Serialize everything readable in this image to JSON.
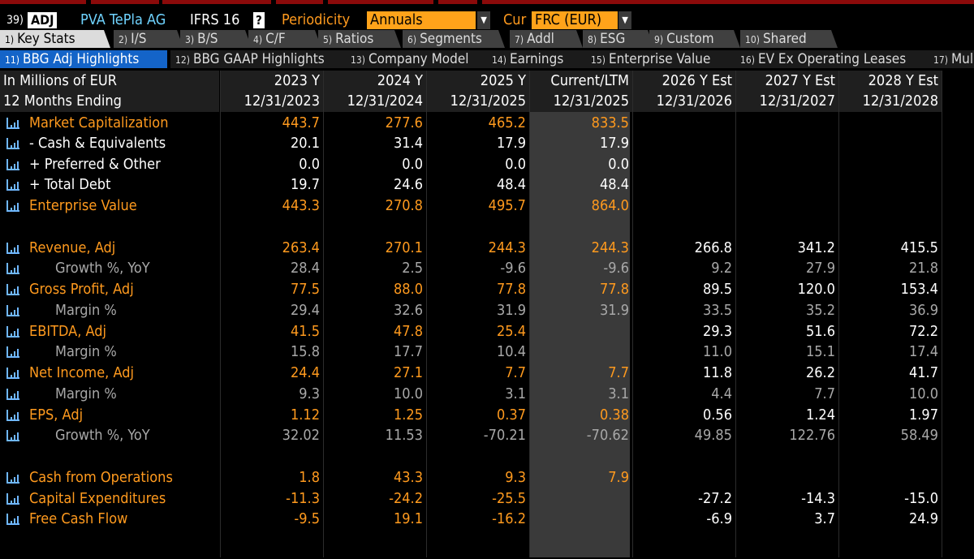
{
  "header": {
    "function_number": "39)",
    "function_code": "ADJ",
    "company": "PVA TePla AG",
    "standard": "IFRS 16",
    "help": "?",
    "periodicity_label": "Periodicity",
    "periodicity_value": "Annuals",
    "currency_label": "Cur",
    "currency_value": "FRC (EUR)"
  },
  "tabs_top": [
    {
      "num": "1)",
      "label": "Key Stats"
    },
    {
      "num": "2)",
      "label": "I/S"
    },
    {
      "num": "3)",
      "label": "B/S"
    },
    {
      "num": "4)",
      "label": "C/F"
    },
    {
      "num": "5)",
      "label": "Ratios"
    },
    {
      "num": "6)",
      "label": "Segments"
    },
    {
      "num": "7)",
      "label": "Addl"
    },
    {
      "num": "8)",
      "label": "ESG"
    },
    {
      "num": "9)",
      "label": "Custom"
    },
    {
      "num": "10)",
      "label": "Shared"
    }
  ],
  "tabs_sub": [
    {
      "num": "11)",
      "label": "BBG Adj Highlights"
    },
    {
      "num": "12)",
      "label": "BBG GAAP Highlights"
    },
    {
      "num": "13)",
      "label": "Company Model"
    },
    {
      "num": "14)",
      "label": "Earnings"
    },
    {
      "num": "15)",
      "label": "Enterprise Value"
    },
    {
      "num": "16)",
      "label": "EV Ex Operating Leases"
    },
    {
      "num": "17)",
      "label": "Mul"
    }
  ],
  "table": {
    "units_label": "In Millions of EUR",
    "period_label": "12 Months Ending",
    "columns": [
      {
        "year": "2023 Y",
        "date": "12/31/2023"
      },
      {
        "year": "2024 Y",
        "date": "12/31/2024"
      },
      {
        "year": "2025 Y",
        "date": "12/31/2025"
      },
      {
        "year": "Current/LTM",
        "date": "12/31/2025"
      },
      {
        "year": "2026 Y Est",
        "date": "12/31/2026"
      },
      {
        "year": "2027 Y Est",
        "date": "12/31/2027"
      },
      {
        "year": "2028 Y Est",
        "date": "12/31/2028"
      }
    ],
    "rows": [
      {
        "label": "Market Capitalization",
        "style": "main",
        "values": [
          "443.7",
          "277.6",
          "465.2",
          "833.5",
          "",
          "",
          ""
        ]
      },
      {
        "label": "- Cash & Equivalents",
        "style": "white",
        "values": [
          "20.1",
          "31.4",
          "17.9",
          "17.9",
          "",
          "",
          ""
        ]
      },
      {
        "label": "+ Preferred & Other",
        "style": "white",
        "values": [
          "0.0",
          "0.0",
          "0.0",
          "0.0",
          "",
          "",
          ""
        ]
      },
      {
        "label": "+ Total Debt",
        "style": "white",
        "values": [
          "19.7",
          "24.6",
          "48.4",
          "48.4",
          "",
          "",
          ""
        ]
      },
      {
        "label": "Enterprise Value",
        "style": "main",
        "values": [
          "443.3",
          "270.8",
          "495.7",
          "864.0",
          "",
          "",
          ""
        ]
      },
      {
        "label": "",
        "style": "blank",
        "values": [
          "",
          "",
          "",
          "",
          "",
          "",
          ""
        ]
      },
      {
        "label": "Revenue, Adj",
        "style": "main",
        "values": [
          "263.4",
          "270.1",
          "244.3",
          "244.3",
          "266.8",
          "341.2",
          "415.5"
        ]
      },
      {
        "label": "Growth %, YoY",
        "style": "sub",
        "values": [
          "28.4",
          "2.5",
          "-9.6",
          "-9.6",
          "9.2",
          "27.9",
          "21.8"
        ]
      },
      {
        "label": "Gross Profit, Adj",
        "style": "main",
        "values": [
          "77.5",
          "88.0",
          "77.8",
          "77.8",
          "89.5",
          "120.0",
          "153.4"
        ]
      },
      {
        "label": "Margin %",
        "style": "sub",
        "values": [
          "29.4",
          "32.6",
          "31.9",
          "31.9",
          "33.5",
          "35.2",
          "36.9"
        ]
      },
      {
        "label": "EBITDA, Adj",
        "style": "main",
        "values": [
          "41.5",
          "47.8",
          "25.4",
          "",
          "29.3",
          "51.6",
          "72.2"
        ]
      },
      {
        "label": "Margin %",
        "style": "sub",
        "values": [
          "15.8",
          "17.7",
          "10.4",
          "",
          "11.0",
          "15.1",
          "17.4"
        ]
      },
      {
        "label": "Net Income, Adj",
        "style": "main",
        "values": [
          "24.4",
          "27.1",
          "7.7",
          "7.7",
          "11.8",
          "26.2",
          "41.7"
        ]
      },
      {
        "label": "Margin %",
        "style": "sub",
        "values": [
          "9.3",
          "10.0",
          "3.1",
          "3.1",
          "4.4",
          "7.7",
          "10.0"
        ]
      },
      {
        "label": "EPS, Adj",
        "style": "main",
        "values": [
          "1.12",
          "1.25",
          "0.37",
          "0.38",
          "0.56",
          "1.24",
          "1.97"
        ]
      },
      {
        "label": "Growth %, YoY",
        "style": "sub",
        "values": [
          "32.02",
          "11.53",
          "-70.21",
          "-70.62",
          "49.85",
          "122.76",
          "58.49"
        ]
      },
      {
        "label": "",
        "style": "blank",
        "values": [
          "",
          "",
          "",
          "",
          "",
          "",
          ""
        ]
      },
      {
        "label": "Cash from Operations",
        "style": "main",
        "values": [
          "1.8",
          "43.3",
          "9.3",
          "7.9",
          "",
          "",
          ""
        ]
      },
      {
        "label": "Capital Expenditures",
        "style": "main",
        "values": [
          "-11.3",
          "-24.2",
          "-25.5",
          "",
          "-27.2",
          "-14.3",
          "-15.0"
        ]
      },
      {
        "label": "Free Cash Flow",
        "style": "main",
        "values": [
          "-9.5",
          "19.1",
          "-16.2",
          "",
          "-6.9",
          "3.7",
          "24.9"
        ]
      }
    ]
  },
  "colors": {
    "accent_orange": "#ff9a1e",
    "active_sub_tab": "#1464c8",
    "header_blue": "#6fd3ff",
    "chart_icon_blue": "#6fb7ff"
  }
}
